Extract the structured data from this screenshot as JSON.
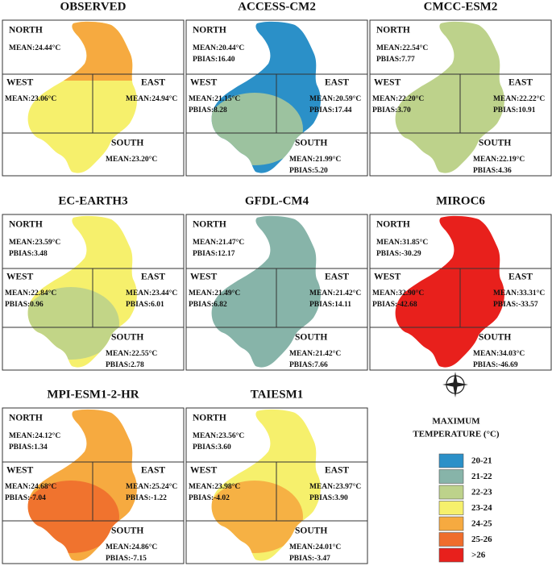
{
  "panels": [
    {
      "title": "OBSERVED",
      "color": "#f6f06c",
      "north_color": "#f6aa40",
      "regions": [
        {
          "name": "NORTH",
          "mean": "MEAN:24.44°C"
        },
        {
          "name": "WEST",
          "mean": "MEAN:23.06°C"
        },
        {
          "name": "EAST",
          "mean": "MEAN:24.94°C"
        },
        {
          "name": "SOUTH",
          "mean": "MEAN:23.20°C"
        }
      ]
    },
    {
      "title": "ACCESS-CM2",
      "color": "#2b90c8",
      "south_color": "#a9c89a",
      "regions": [
        {
          "name": "NORTH",
          "mean": "MEAN:20.44°C",
          "pbias": "PBIAS:16.40"
        },
        {
          "name": "WEST",
          "mean": "MEAN:21.15°C",
          "pbias": "PBIAS:8.28"
        },
        {
          "name": "EAST",
          "mean": "MEAN:20.59°C",
          "pbias": "PBIAS:17.44"
        },
        {
          "name": "SOUTH",
          "mean": "MEAN:21.99°C",
          "pbias": "PBIAS:5.20"
        }
      ]
    },
    {
      "title": "CMCC-ESM2",
      "color": "#bdd28b",
      "regions": [
        {
          "name": "NORTH",
          "mean": "MEAN:22.54°C",
          "pbias": "PBIAS:7.77"
        },
        {
          "name": "WEST",
          "mean": "MEAN:22.20°C",
          "pbias": "PBIAS:3.70"
        },
        {
          "name": "EAST",
          "mean": "MEAN:22.22°C",
          "pbias": "PBIAS:10.91"
        },
        {
          "name": "SOUTH",
          "mean": "MEAN:22.19°C",
          "pbias": "PBIAS:4.36"
        }
      ]
    },
    {
      "title": "EC-EARTH3",
      "color": "#f6f06c",
      "south_color": "#bdd28b",
      "regions": [
        {
          "name": "NORTH",
          "mean": "MEAN:23.59°C",
          "pbias": "PBIAS:3.48"
        },
        {
          "name": "WEST",
          "mean": "MEAN:22.84°C",
          "pbias": "PBIAS:0.96"
        },
        {
          "name": "EAST",
          "mean": "MEAN:23.44°C",
          "pbias": "PBIAS:6.01"
        },
        {
          "name": "SOUTH",
          "mean": "MEAN:22.55°C",
          "pbias": "PBIAS:2.78"
        }
      ]
    },
    {
      "title": "GFDL-CM4",
      "color": "#87b4a9",
      "regions": [
        {
          "name": "NORTH",
          "mean": "MEAN:21.47°C",
          "pbias": "PBIAS:12.17"
        },
        {
          "name": "WEST",
          "mean": "MEAN:21.49°C",
          "pbias": "PBIAS:6.82"
        },
        {
          "name": "EAST",
          "mean": "MEAN:21.42°C",
          "pbias": "PBIAS:14.11"
        },
        {
          "name": "SOUTH",
          "mean": "MEAN:21.42°C",
          "pbias": "PBIAS:7.66"
        }
      ]
    },
    {
      "title": "MIROC6",
      "color": "#e8201c",
      "regions": [
        {
          "name": "NORTH",
          "mean": "MEAN:31.85°C",
          "pbias": "PBIAS:-30.29"
        },
        {
          "name": "WEST",
          "mean": "MEAN:32.90°C",
          "pbias": "PBIAS:-42.68"
        },
        {
          "name": "EAST",
          "mean": "MEAN:33.31°C",
          "pbias": "PBIAS:-33.57"
        },
        {
          "name": "SOUTH",
          "mean": "MEAN:34.03°C",
          "pbias": "PBIAS:-46.69"
        }
      ]
    },
    {
      "title": "MPI-ESM1-2-HR",
      "color": "#f6aa40",
      "south_color": "#ef6d2c",
      "regions": [
        {
          "name": "NORTH",
          "mean": "MEAN:24.12°C",
          "pbias": "PBIAS:1.34"
        },
        {
          "name": "WEST",
          "mean": "MEAN:24.68°C",
          "pbias": "PBIAS:-7.04"
        },
        {
          "name": "EAST",
          "mean": "MEAN:25.24°C",
          "pbias": "PBIAS:-1.22"
        },
        {
          "name": "SOUTH",
          "mean": "MEAN:24.86°C",
          "pbias": "PBIAS:-7.15"
        }
      ]
    },
    {
      "title": "TAIESM1",
      "color": "#f6f06c",
      "south_color": "#f6aa40",
      "regions": [
        {
          "name": "NORTH",
          "mean": "MEAN:23.56°C",
          "pbias": "PBIAS:3.60"
        },
        {
          "name": "WEST",
          "mean": "MEAN:23.98°C",
          "pbias": "PBIAS:-4.02"
        },
        {
          "name": "EAST",
          "mean": "MEAN:23.97°C",
          "pbias": "PBIAS:3.90"
        },
        {
          "name": "SOUTH",
          "mean": "MEAN:24.01°C",
          "pbias": "PBIAS:-3.47"
        }
      ]
    }
  ],
  "legend": {
    "title": [
      "MAXIMUM",
      "TEMPERATURE (°C)"
    ],
    "items": [
      {
        "label": "20-21",
        "color": "#2b90c8"
      },
      {
        "label": "21-22",
        "color": "#87b4a9"
      },
      {
        "label": "22-23",
        "color": "#bdd28b"
      },
      {
        "label": "23-24",
        "color": "#f6f06c"
      },
      {
        "label": "24-25",
        "color": "#f6aa40"
      },
      {
        "label": "25-26",
        "color": "#ef6d2c"
      },
      {
        "label": ">26",
        "color": "#e8201c"
      }
    ]
  }
}
